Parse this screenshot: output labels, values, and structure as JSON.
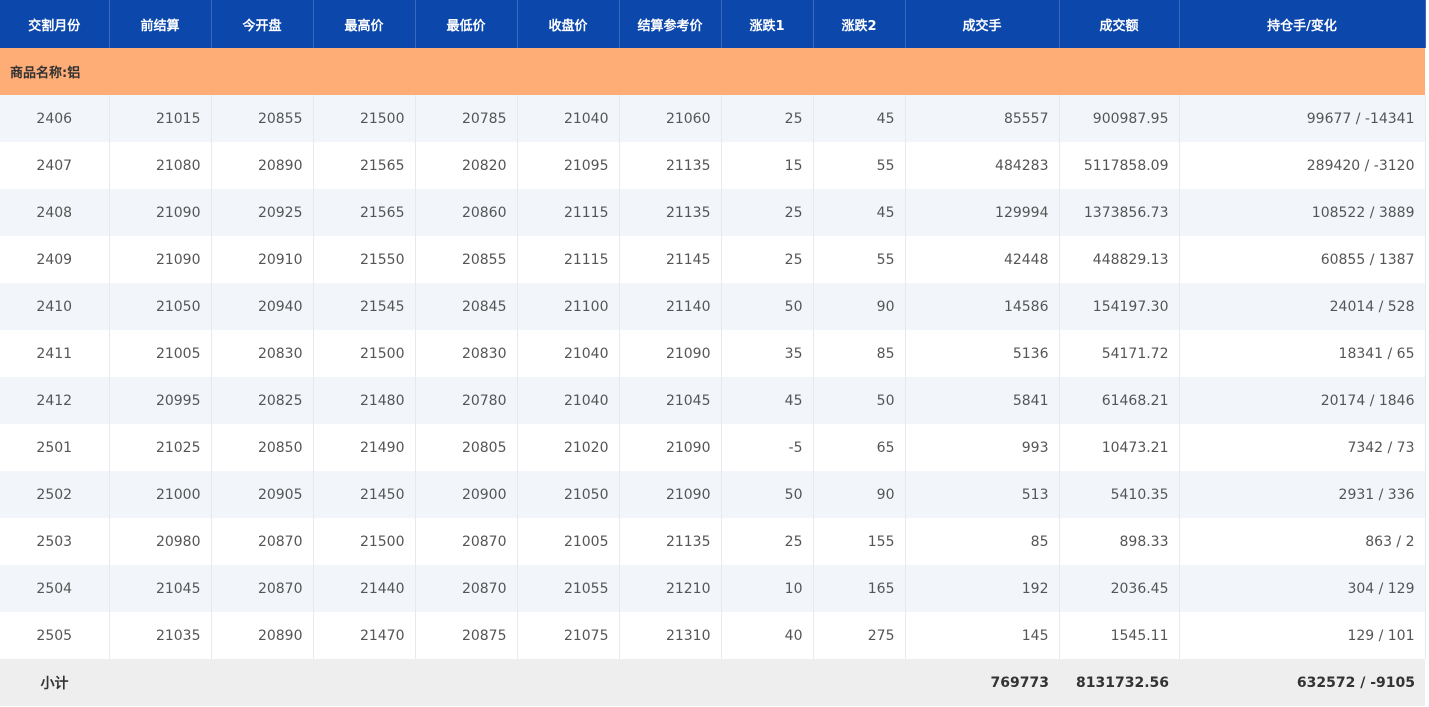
{
  "table": {
    "columns": [
      "交割月份",
      "前结算",
      "今开盘",
      "最高价",
      "最低价",
      "收盘价",
      "结算参考价",
      "涨跌1",
      "涨跌2",
      "成交手",
      "成交额",
      "持仓手/变化"
    ],
    "section": "商品名称:铝",
    "rows": [
      [
        "2406",
        "21015",
        "20855",
        "21500",
        "20785",
        "21040",
        "21060",
        "25",
        "45",
        "85557",
        "900987.95",
        "99677 / -14341"
      ],
      [
        "2407",
        "21080",
        "20890",
        "21565",
        "20820",
        "21095",
        "21135",
        "15",
        "55",
        "484283",
        "5117858.09",
        "289420 / -3120"
      ],
      [
        "2408",
        "21090",
        "20925",
        "21565",
        "20860",
        "21115",
        "21135",
        "25",
        "45",
        "129994",
        "1373856.73",
        "108522 / 3889"
      ],
      [
        "2409",
        "21090",
        "20910",
        "21550",
        "20855",
        "21115",
        "21145",
        "25",
        "55",
        "42448",
        "448829.13",
        "60855 / 1387"
      ],
      [
        "2410",
        "21050",
        "20940",
        "21545",
        "20845",
        "21100",
        "21140",
        "50",
        "90",
        "14586",
        "154197.30",
        "24014 / 528"
      ],
      [
        "2411",
        "21005",
        "20830",
        "21500",
        "20830",
        "21040",
        "21090",
        "35",
        "85",
        "5136",
        "54171.72",
        "18341 / 65"
      ],
      [
        "2412",
        "20995",
        "20825",
        "21480",
        "20780",
        "21040",
        "21045",
        "45",
        "50",
        "5841",
        "61468.21",
        "20174 / 1846"
      ],
      [
        "2501",
        "21025",
        "20850",
        "21490",
        "20805",
        "21020",
        "21090",
        "-5",
        "65",
        "993",
        "10473.21",
        "7342 / 73"
      ],
      [
        "2502",
        "21000",
        "20905",
        "21450",
        "20900",
        "21050",
        "21090",
        "50",
        "90",
        "513",
        "5410.35",
        "2931 / 336"
      ],
      [
        "2503",
        "20980",
        "20870",
        "21500",
        "20870",
        "21005",
        "21135",
        "25",
        "155",
        "85",
        "898.33",
        "863 / 2"
      ],
      [
        "2504",
        "21045",
        "20870",
        "21440",
        "20870",
        "21055",
        "21210",
        "10",
        "165",
        "192",
        "2036.45",
        "304 / 129"
      ],
      [
        "2505",
        "21035",
        "20890",
        "21470",
        "20875",
        "21075",
        "21310",
        "40",
        "275",
        "145",
        "1545.11",
        "129 / 101"
      ]
    ],
    "subtotal": {
      "label": "小计",
      "volume": "769773",
      "turnover": "8131732.56",
      "open_interest": "632572 / -9105"
    }
  }
}
